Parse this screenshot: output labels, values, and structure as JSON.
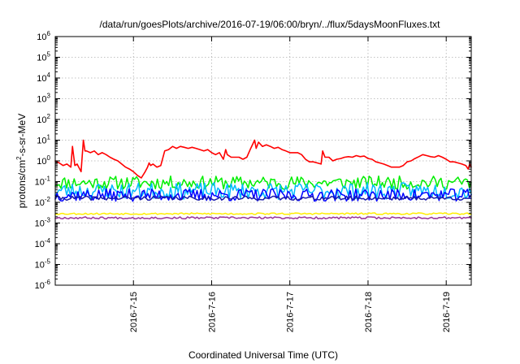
{
  "chart_data": {
    "type": "line",
    "title": "/data/run/goesPlots/archive/2016-07-19/06:00/bryn/../flux/5daysMoonFluxes.txt",
    "xlabel": "Coordinated Universal Time (UTC)",
    "ylabel": {
      "prefix": "protons/cm",
      "sup": "2",
      "suffix": "-s-sr-MeV"
    },
    "x_unit": "days since 2016-07-14 00:00 UTC",
    "xlim": [
      0,
      5.32
    ],
    "ylim_log10": [
      -6,
      6
    ],
    "y_scale": "log",
    "grid": true,
    "x_ticks": [
      {
        "value": 1,
        "label": "2016-7-15"
      },
      {
        "value": 2,
        "label": "2016-7-16"
      },
      {
        "value": 3,
        "label": "2016-7-17"
      },
      {
        "value": 4,
        "label": "2016-7-18"
      },
      {
        "value": 5,
        "label": "2016-7-19"
      }
    ],
    "y_ticks": [
      {
        "exp": -6,
        "base": "10",
        "sup": "-6"
      },
      {
        "exp": -5,
        "base": "10",
        "sup": "-5"
      },
      {
        "exp": -4,
        "base": "10",
        "sup": "-4"
      },
      {
        "exp": -3,
        "base": "10",
        "sup": "-3"
      },
      {
        "exp": -2,
        "base": "10",
        "sup": "-2"
      },
      {
        "exp": -1,
        "base": "10",
        "sup": "-1"
      },
      {
        "exp": 0,
        "base": "10",
        "sup": "0"
      },
      {
        "exp": 1,
        "base": "10",
        "sup": "1"
      },
      {
        "exp": 2,
        "base": "10",
        "sup": "2"
      },
      {
        "exp": 3,
        "base": "10",
        "sup": "3"
      },
      {
        "exp": 4,
        "base": "10",
        "sup": "4"
      },
      {
        "exp": 5,
        "base": "10",
        "sup": "5"
      },
      {
        "exp": 6,
        "base": "10",
        "sup": "6"
      }
    ],
    "series": [
      {
        "color": "#ff0000",
        "width": 1.6,
        "points": [
          [
            0.0,
            1.0
          ],
          [
            0.05,
            0.8
          ],
          [
            0.1,
            0.6
          ],
          [
            0.15,
            0.7
          ],
          [
            0.2,
            0.5
          ],
          [
            0.22,
            5.0
          ],
          [
            0.25,
            0.6
          ],
          [
            0.28,
            0.7
          ],
          [
            0.3,
            0.5
          ],
          [
            0.33,
            0.3
          ],
          [
            0.36,
            10.0
          ],
          [
            0.38,
            3.0
          ],
          [
            0.4,
            3.0
          ],
          [
            0.45,
            2.5
          ],
          [
            0.5,
            3.0
          ],
          [
            0.55,
            2.0
          ],
          [
            0.6,
            2.5
          ],
          [
            0.65,
            2.0
          ],
          [
            0.7,
            1.5
          ],
          [
            0.75,
            1.2
          ],
          [
            0.8,
            1.0
          ],
          [
            0.85,
            0.7
          ],
          [
            0.9,
            0.5
          ],
          [
            0.95,
            0.4
          ],
          [
            1.0,
            0.3
          ],
          [
            1.05,
            0.2
          ],
          [
            1.1,
            0.15
          ],
          [
            1.15,
            0.3
          ],
          [
            1.18,
            0.5
          ],
          [
            1.2,
            0.8
          ],
          [
            1.22,
            0.6
          ],
          [
            1.25,
            0.7
          ],
          [
            1.3,
            0.5
          ],
          [
            1.35,
            0.6
          ],
          [
            1.4,
            3.0
          ],
          [
            1.45,
            3.5
          ],
          [
            1.5,
            5.0
          ],
          [
            1.55,
            4.0
          ],
          [
            1.6,
            5.0
          ],
          [
            1.65,
            4.5
          ],
          [
            1.7,
            4.0
          ],
          [
            1.75,
            4.5
          ],
          [
            1.8,
            4.0
          ],
          [
            1.85,
            3.5
          ],
          [
            1.9,
            3.0
          ],
          [
            1.95,
            3.5
          ],
          [
            2.0,
            2.5
          ],
          [
            2.05,
            2.0
          ],
          [
            2.1,
            2.5
          ],
          [
            2.15,
            1.2
          ],
          [
            2.18,
            3.5
          ],
          [
            2.2,
            2.0
          ],
          [
            2.25,
            1.5
          ],
          [
            2.3,
            1.5
          ],
          [
            2.35,
            1.5
          ],
          [
            2.4,
            1.2
          ],
          [
            2.45,
            1.5
          ],
          [
            2.5,
            4.0
          ],
          [
            2.55,
            10.0
          ],
          [
            2.57,
            4.0
          ],
          [
            2.6,
            8.0
          ],
          [
            2.65,
            5.0
          ],
          [
            2.7,
            6.0
          ],
          [
            2.75,
            5.0
          ],
          [
            2.8,
            4.0
          ],
          [
            2.85,
            4.5
          ],
          [
            2.9,
            3.5
          ],
          [
            2.95,
            3.0
          ],
          [
            3.0,
            2.5
          ],
          [
            3.05,
            2.5
          ],
          [
            3.1,
            2.5
          ],
          [
            3.15,
            2.0
          ],
          [
            3.2,
            1.2
          ],
          [
            3.25,
            0.9
          ],
          [
            3.3,
            0.9
          ],
          [
            3.35,
            0.8
          ],
          [
            3.4,
            0.7
          ],
          [
            3.42,
            3.0
          ],
          [
            3.45,
            1.5
          ],
          [
            3.5,
            1.5
          ],
          [
            3.55,
            1.0
          ],
          [
            3.6,
            1.2
          ],
          [
            3.65,
            1.3
          ],
          [
            3.7,
            1.5
          ],
          [
            3.75,
            1.6
          ],
          [
            3.8,
            1.5
          ],
          [
            3.85,
            1.8
          ],
          [
            3.9,
            1.6
          ],
          [
            3.95,
            1.7
          ],
          [
            4.0,
            1.3
          ],
          [
            4.05,
            1.2
          ],
          [
            4.1,
            0.9
          ],
          [
            4.15,
            0.8
          ],
          [
            4.2,
            0.7
          ],
          [
            4.25,
            0.6
          ],
          [
            4.3,
            0.5
          ],
          [
            4.35,
            0.5
          ],
          [
            4.4,
            0.5
          ],
          [
            4.45,
            0.6
          ],
          [
            4.5,
            0.9
          ],
          [
            4.55,
            1.0
          ],
          [
            4.6,
            1.3
          ],
          [
            4.65,
            1.6
          ],
          [
            4.7,
            2.0
          ],
          [
            4.75,
            1.8
          ],
          [
            4.8,
            1.6
          ],
          [
            4.85,
            1.5
          ],
          [
            4.9,
            1.8
          ],
          [
            4.95,
            1.5
          ],
          [
            5.0,
            1.2
          ],
          [
            5.05,
            0.9
          ],
          [
            5.1,
            0.9
          ],
          [
            5.15,
            0.8
          ],
          [
            5.2,
            0.7
          ],
          [
            5.25,
            0.6
          ],
          [
            5.28,
            0.4
          ],
          [
            5.3,
            0.7
          ],
          [
            5.32,
            0.5
          ]
        ]
      },
      {
        "color": "#00ee00",
        "width": 1.5,
        "center": -1.05,
        "amp": 0.32,
        "seed": 11
      },
      {
        "color": "#00bbff",
        "width": 1.5,
        "center": -1.45,
        "amp": 0.4,
        "seed": 23
      },
      {
        "color": "#0000ff",
        "width": 1.5,
        "center": -1.65,
        "amp": 0.3,
        "seed": 37
      },
      {
        "color": "#1a1aaa",
        "width": 1.5,
        "center": -1.8,
        "amp": 0.1,
        "seed": 41
      },
      {
        "color": "#ffee00",
        "width": 1.5,
        "center": -2.55,
        "amp": 0.04,
        "seed": 53
      },
      {
        "color": "#993399",
        "width": 1.5,
        "center": -2.75,
        "amp": 0.05,
        "seed": 67
      }
    ]
  }
}
